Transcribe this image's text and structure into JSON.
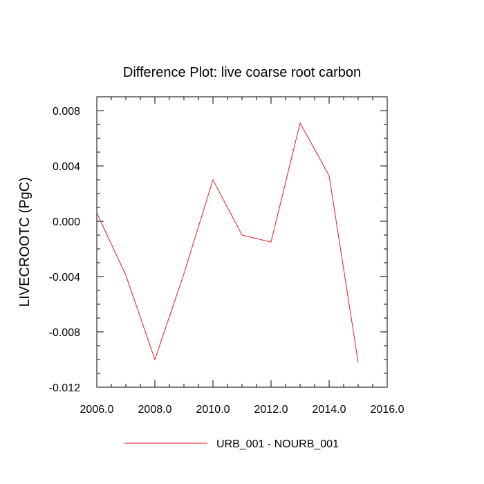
{
  "chart_data": {
    "type": "line",
    "title": "Difference Plot: live coarse root carbon",
    "xlabel": "",
    "ylabel": "LIVECROOTC  (PgC)",
    "xlim": [
      2006,
      2016
    ],
    "ylim": [
      -0.012,
      0.009
    ],
    "x_ticks": [
      2006,
      2008,
      2010,
      2012,
      2014,
      2016
    ],
    "x_tick_labels": [
      "2006.0",
      "2008.0",
      "2010.0",
      "2012.0",
      "2014.0",
      "2016.0"
    ],
    "y_ticks": [
      -0.012,
      -0.008,
      -0.004,
      0.0,
      0.004,
      0.008
    ],
    "y_tick_labels": [
      "-0.012",
      "-0.008",
      "-0.004",
      "0.000",
      "0.004",
      "0.008"
    ],
    "grid": false,
    "legend_position": "bottom",
    "series": [
      {
        "name": "URB_001 - NOURB_001",
        "color": "#e8191f",
        "x": [
          2006,
          2007,
          2008,
          2009,
          2010,
          2011,
          2012,
          2013,
          2014,
          2015
        ],
        "y": [
          0.0006,
          -0.0039,
          -0.01,
          -0.0038,
          0.003,
          -0.001,
          -0.0015,
          0.0071,
          0.0033,
          -0.0102
        ]
      }
    ]
  }
}
